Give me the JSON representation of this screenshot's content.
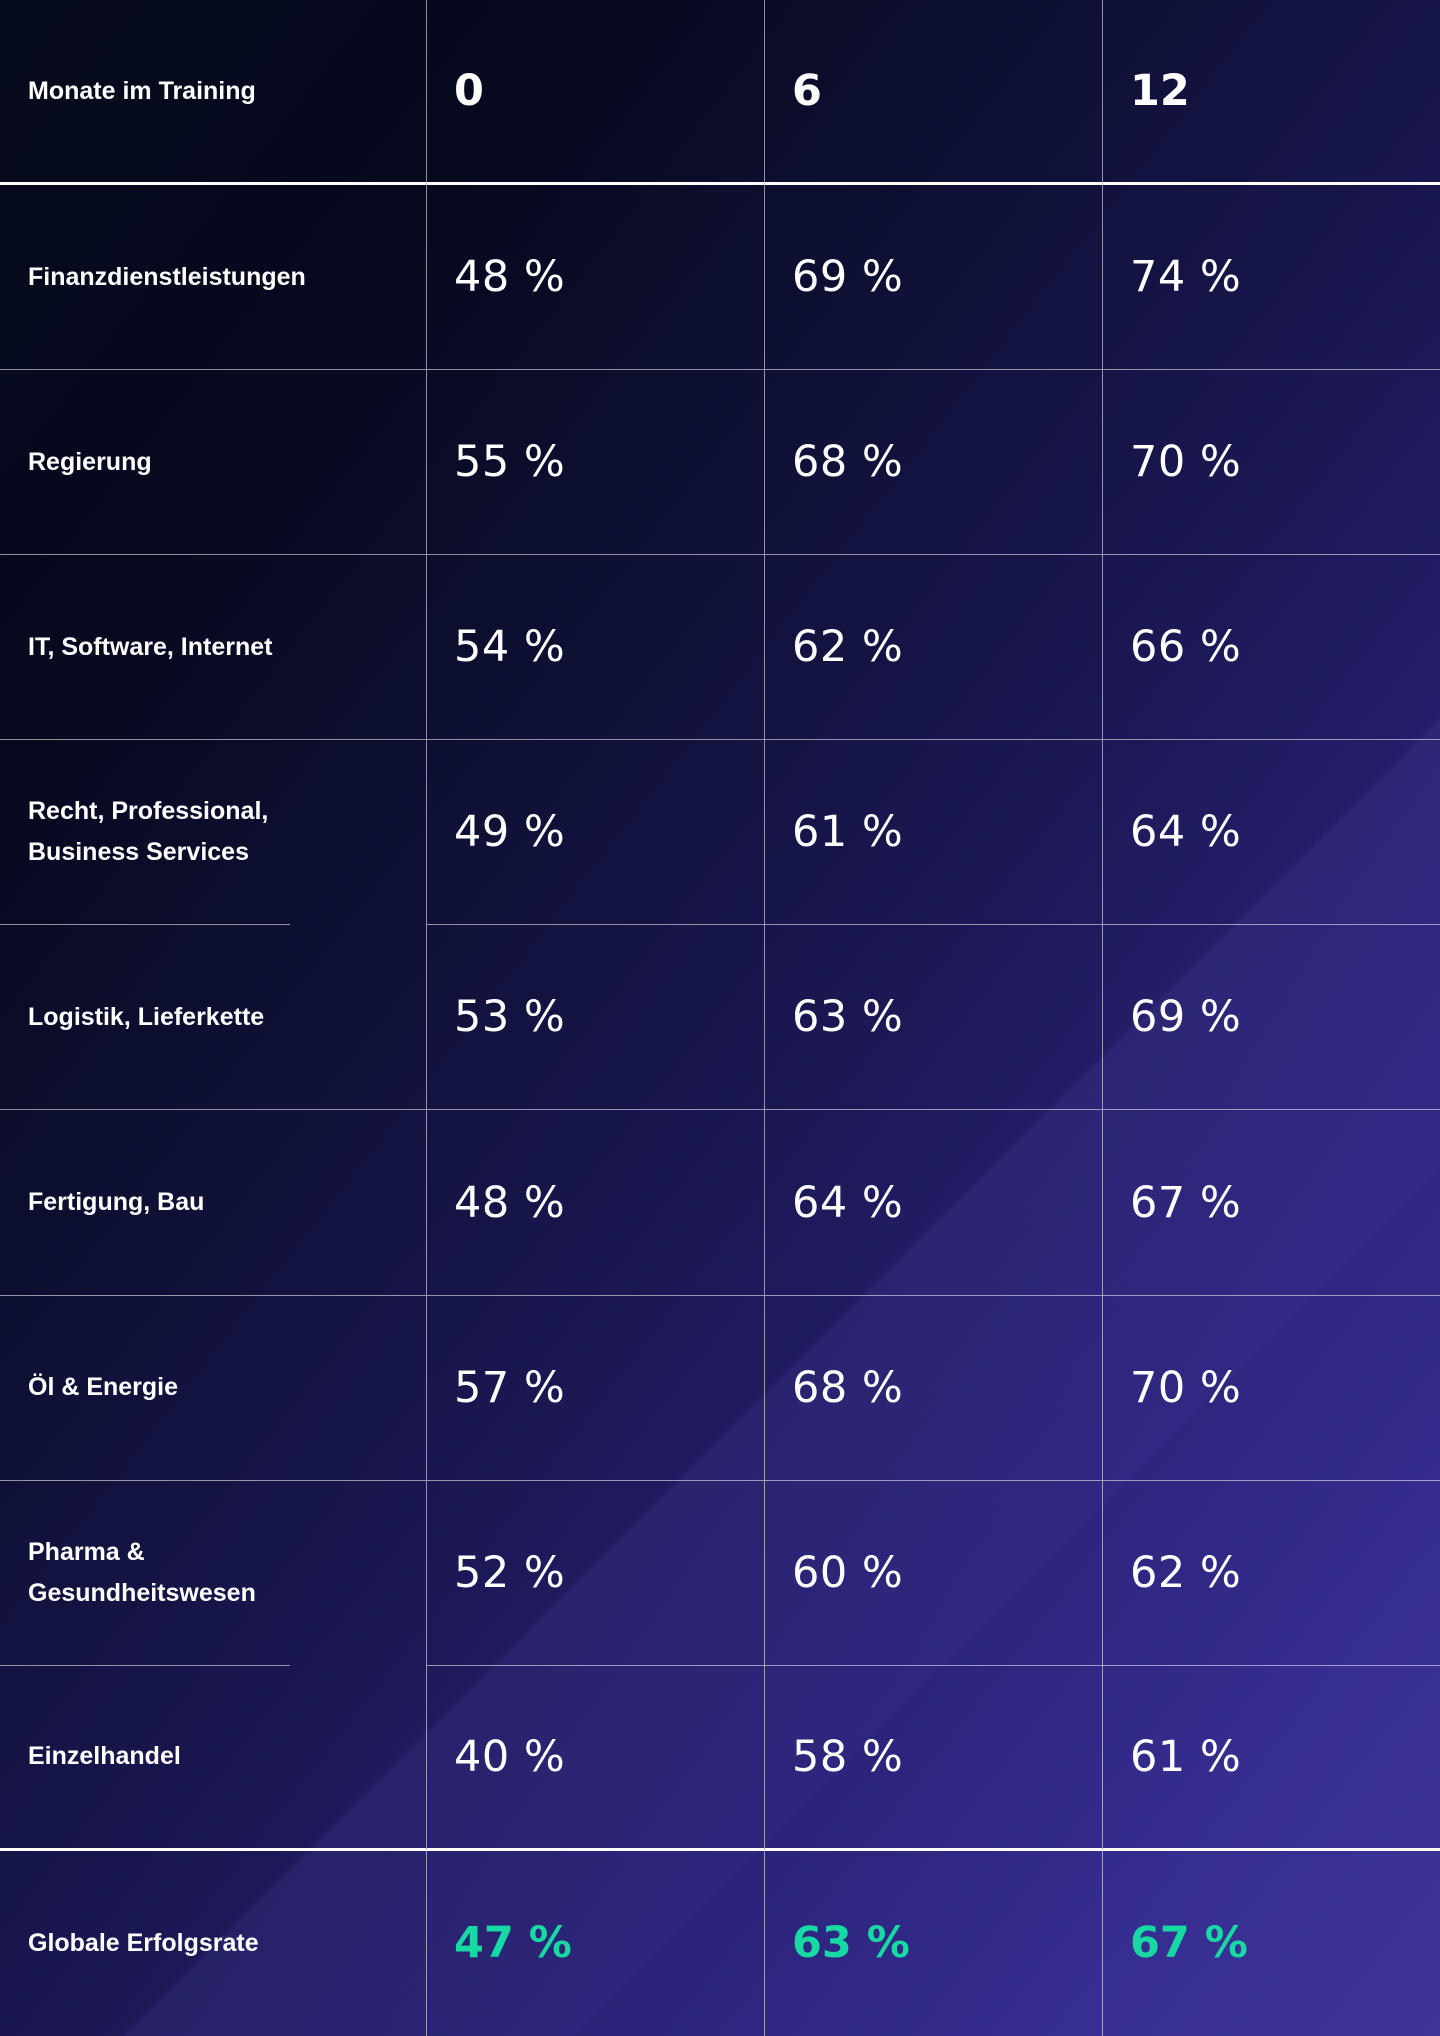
{
  "colors": {
    "text": "#ffffff",
    "accent_green": "#16d9a3",
    "background_dark": "#06091e",
    "background_purple": "#3f3596",
    "grid_line": "#ffffff"
  },
  "chart_data": {
    "type": "table",
    "header": {
      "label": "Monate im Training",
      "columns": [
        "0",
        "6",
        "12"
      ]
    },
    "rows": [
      {
        "label": "Finanzdienstleistungen",
        "values": [
          "48 %",
          "69 %",
          "74 %"
        ]
      },
      {
        "label": "Regierung",
        "values": [
          "55 %",
          "68 %",
          "70 %"
        ]
      },
      {
        "label": "IT, Software, Internet",
        "values": [
          "54 %",
          "62 %",
          "66 %"
        ]
      },
      {
        "label": "Recht, Professional, Business Services",
        "values": [
          "49 %",
          "61 %",
          "64 %"
        ]
      },
      {
        "label": "Logistik, Lieferkette",
        "values": [
          "53 %",
          "63 %",
          "69 %"
        ]
      },
      {
        "label": "Fertigung, Bau",
        "values": [
          "48 %",
          "64 %",
          "67 %"
        ]
      },
      {
        "label": "Öl & Energie",
        "values": [
          "57 %",
          "68 %",
          "70 %"
        ]
      },
      {
        "label": "Pharma & Gesundheitswesen",
        "values": [
          "52 %",
          "60 %",
          "62 %"
        ]
      },
      {
        "label": "Einzelhandel",
        "values": [
          "40 %",
          "58 %",
          "61 %"
        ]
      }
    ],
    "total": {
      "label": "Globale Erfolgsrate",
      "values": [
        "47 %",
        "63 %",
        "67 %"
      ]
    }
  }
}
